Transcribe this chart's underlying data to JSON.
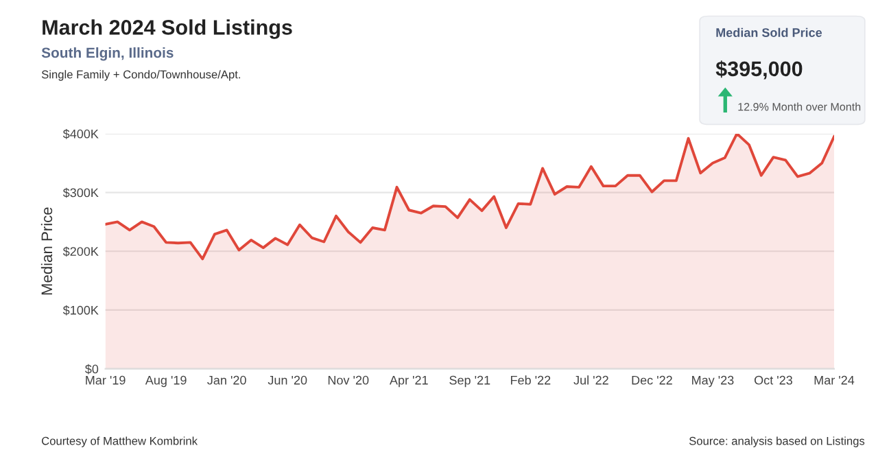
{
  "chart_data": [
    {
      "type": "area",
      "title": "March 2024 Sold Listings",
      "subtitle": "South Elgin, Illinois",
      "ylabel": "Median Price",
      "annotations": [
        "Single Family + Condo/Townhouse/Apt.",
        "Courtesy of Matthew Kombrink",
        "Source: analysis based on Listings"
      ],
      "categories": [
        "Mar '19",
        null,
        null,
        null,
        null,
        "Aug '19",
        null,
        null,
        null,
        null,
        "Jan '20",
        null,
        null,
        null,
        null,
        "Jun '20",
        null,
        null,
        null,
        null,
        "Nov '20",
        null,
        null,
        null,
        null,
        "Apr '21",
        null,
        null,
        null,
        null,
        "Sep '21",
        null,
        null,
        null,
        null,
        "Feb '22",
        null,
        null,
        null,
        null,
        "Jul '22",
        null,
        null,
        null,
        null,
        "Dec '22",
        null,
        null,
        null,
        null,
        "May '23",
        null,
        null,
        null,
        null,
        "Oct '23",
        null,
        null,
        null,
        null,
        "Mar '24"
      ],
      "series": [
        {
          "color": "#e0473a",
          "values": [
            246000,
            250000,
            236000,
            250000,
            242000,
            215000,
            214000,
            215000,
            187000,
            229000,
            236000,
            202000,
            219000,
            206000,
            222000,
            211000,
            245000,
            223000,
            216000,
            260000,
            233000,
            215000,
            240000,
            236000,
            309000,
            270000,
            265000,
            277000,
            276000,
            257000,
            288000,
            269000,
            293000,
            240000,
            281000,
            280000,
            341000,
            297000,
            310000,
            309000,
            344000,
            311000,
            311000,
            329000,
            329000,
            301000,
            320000,
            320000,
            392000,
            333000,
            350000,
            359000,
            400000,
            381000,
            329000,
            360000,
            355000,
            327000,
            333000,
            350000,
            395000
          ]
        }
      ],
      "ylim": [
        0,
        400000
      ],
      "yticks": [
        {
          "value": 0,
          "label": "$0"
        },
        {
          "value": 100000,
          "label": "$100K"
        },
        {
          "value": 200000,
          "label": "$200K"
        },
        {
          "value": 300000,
          "label": "$300K"
        },
        {
          "value": 400000,
          "label": "$400K"
        }
      ],
      "grid": "y",
      "marker": "none",
      "line_style": "solid"
    },
    {
      "type": "other",
      "title": "Median Sold Price",
      "annotations": [
        "$395,000",
        "12.9% Month over Month"
      ]
    }
  ]
}
